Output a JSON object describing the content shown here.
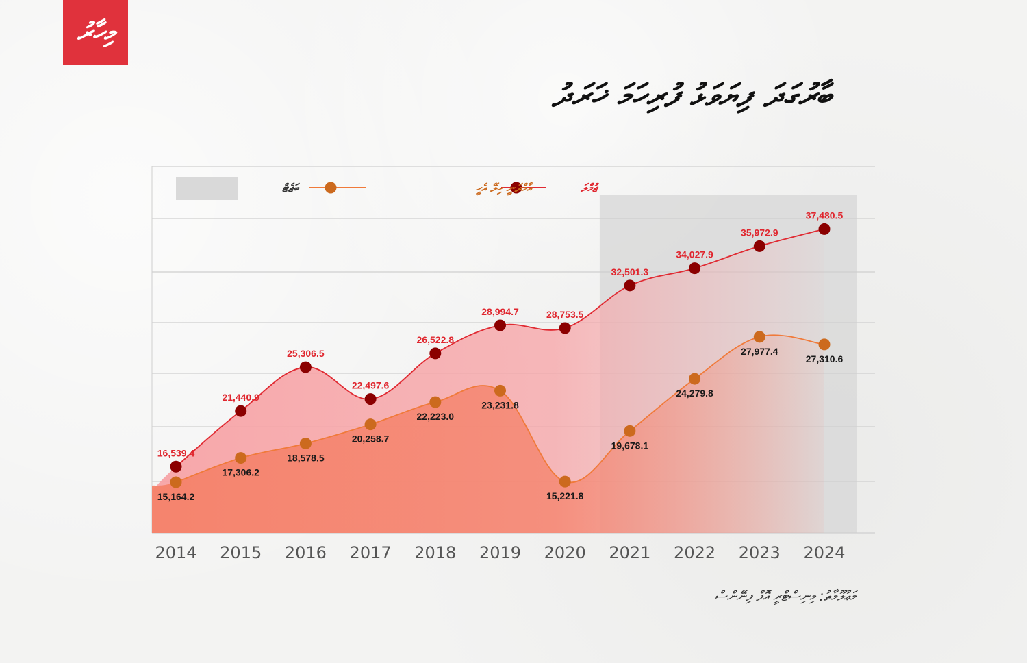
{
  "header": {
    "logo_text": "މިހާރު",
    "title": "ބާރުގަދަ ފިޔަވަޅު ފުރިހަމަ ޚަރަދު"
  },
  "footer": {
    "source": "މަޢުލޫމާތު: މިނިސްޓްރީ އޮފް ފިނޭންސް"
  },
  "colors": {
    "logo_bg": "#e0323c",
    "total_line": "#e02a32",
    "total_marker": "#8b0000",
    "total_label": "#e0262e",
    "revenue_line": "#f07a3a",
    "revenue_marker": "#cc6a1e",
    "revenue_label": "#1a1a1a",
    "total_fill": "#f7a3a6",
    "revenue_fill": "#f5826a",
    "shade": "#d9d9d9",
    "grid": "#cfcfcf",
    "tick": "#555555"
  },
  "chart_data": {
    "type": "line",
    "title": "ބާރުގަދަ ފިޔަވަޅު ފުރިހަމަ ޚަރަދު",
    "xlabel": "",
    "ylabel": "",
    "categories": [
      "2014",
      "2015",
      "2016",
      "2017",
      "2018",
      "2019",
      "2020",
      "2021",
      "2022",
      "2023",
      "2024"
    ],
    "series": [
      {
        "name": "ޖުމްލަ",
        "key": "total",
        "values": [
          16539.4,
          21440.9,
          25306.5,
          22497.6,
          26522.8,
          28994.7,
          28753.5,
          32501.3,
          34027.9,
          35972.9,
          37480.5
        ],
        "labels": [
          "16,539.4",
          "21,440.9",
          "25,306.5",
          "22,497.6",
          "26,522.8",
          "28,994.7",
          "28,753.5",
          "32,501.3",
          "34,027.9",
          "35,972.9",
          "37,480.5"
        ]
      },
      {
        "name": "އާމްދަނީ ހިލޭ އެހީ",
        "key": "revenue",
        "values": [
          15164.2,
          17306.2,
          18578.5,
          20258.7,
          22223.0,
          23231.8,
          15221.8,
          19678.1,
          24279.8,
          27977.4,
          27310.6
        ],
        "labels": [
          "15,164.2",
          "17,306.2",
          "18,578.5",
          "20,258.7",
          "22,223.0",
          "23,231.8",
          "15,221.8",
          "19,678.1",
          "24,279.8",
          "27,977.4",
          "27,310.6"
        ]
      }
    ],
    "shaded_region": {
      "label": "ބަޖެޓް",
      "from": "2021",
      "to": "2024"
    },
    "ylim": [
      10700,
      43000
    ],
    "grid": true,
    "legend": {
      "position": "top",
      "items": [
        {
          "label": "ޖުމްލަ",
          "series": "total"
        },
        {
          "label": "އާމްދަނީ ހިލޭ އެހީ",
          "series": "revenue"
        },
        {
          "label": "ބަޖެޓް",
          "series": "shaded_region"
        }
      ]
    }
  }
}
